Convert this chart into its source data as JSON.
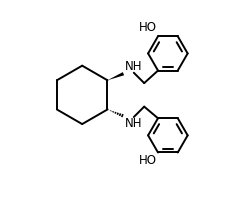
{
  "background_color": "#ffffff",
  "line_color": "#000000",
  "line_width": 1.4,
  "font_size": 8.5,
  "figsize": [
    2.51,
    2.18
  ],
  "dpi": 100,
  "xlim": [
    -0.15,
    1.0
  ],
  "ylim": [
    -0.15,
    1.0
  ]
}
